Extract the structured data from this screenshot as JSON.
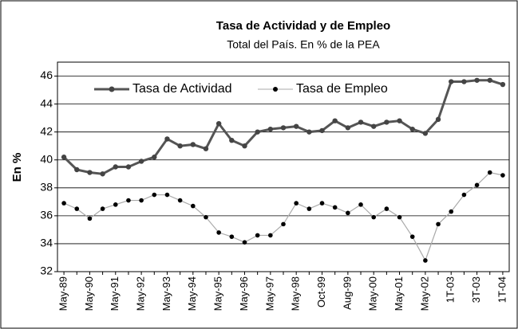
{
  "chart_data": {
    "type": "line",
    "title": "Tasa de Actividad y de Empleo",
    "subtitle": "Total del País. En % de la PEA",
    "y_label": "En %",
    "categories": [
      "May-89",
      null,
      "May-90",
      null,
      "May-91",
      null,
      "May-92",
      null,
      "May-93",
      null,
      "May-94",
      null,
      "May-95",
      null,
      "May-96",
      null,
      "May-97",
      null,
      "May-98",
      null,
      "Oct-99",
      null,
      "Aug-99",
      null,
      "May-00",
      null,
      "May-01",
      null,
      "May-02",
      null,
      "1T-03",
      null,
      "3T-03",
      null,
      "1T-04"
    ],
    "series": [
      {
        "name": "Tasa de Actividad",
        "color": "#555555",
        "values": [
          40.2,
          39.3,
          39.1,
          39.0,
          39.5,
          39.5,
          39.9,
          40.2,
          41.5,
          41.0,
          41.1,
          40.8,
          42.6,
          41.4,
          41.0,
          42.0,
          42.2,
          42.3,
          42.4,
          42.0,
          42.1,
          42.8,
          42.3,
          42.7,
          42.4,
          42.7,
          42.8,
          42.2,
          41.9,
          42.9,
          45.6,
          45.6,
          45.7,
          45.7,
          45.4
        ]
      },
      {
        "name": "Tasa de Empleo",
        "color": "#aaaaaa",
        "values": [
          36.9,
          36.5,
          35.8,
          36.5,
          36.8,
          37.1,
          37.1,
          37.5,
          37.5,
          37.1,
          36.7,
          35.9,
          34.8,
          34.5,
          34.1,
          34.6,
          34.6,
          35.4,
          36.9,
          36.5,
          36.9,
          36.6,
          36.2,
          36.8,
          35.9,
          36.5,
          35.9,
          34.5,
          32.8,
          35.4,
          36.3,
          37.5,
          38.2,
          39.1,
          38.9
        ]
      }
    ],
    "ylim": [
      32,
      47
    ],
    "yticks": [
      32,
      34,
      36,
      38,
      40,
      42,
      44,
      46
    ],
    "grid": true,
    "legend": "top"
  }
}
